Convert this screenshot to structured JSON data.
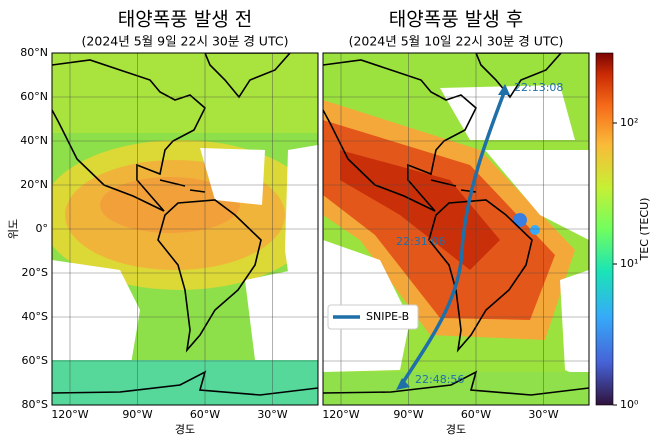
{
  "panels": [
    {
      "title": "태양폭풍 발생 전",
      "subtitle": "(2024년 5월 9일 22시 30분 경 UTC)"
    },
    {
      "title": "태양폭풍 발생 후",
      "subtitle": "(2024년 5월 10일 22시 30분 경 UTC)",
      "annotations": [
        "22:13:08",
        "22:31:06",
        "22:48:56"
      ],
      "legend": "SNIPE-B"
    }
  ],
  "axes": {
    "y_label": "위도",
    "x_label": "경도",
    "lat_ticks": [
      "80°N",
      "60°N",
      "40°N",
      "20°N",
      "0°",
      "20°S",
      "40°S",
      "60°S",
      "80°S"
    ],
    "lon_ticks": [
      "120°W",
      "90°W",
      "60°W",
      "30°W"
    ]
  },
  "colorbar": {
    "label": "TEC (TECU)",
    "ticks": [
      "10⁰",
      "10¹",
      "10²"
    ]
  }
}
